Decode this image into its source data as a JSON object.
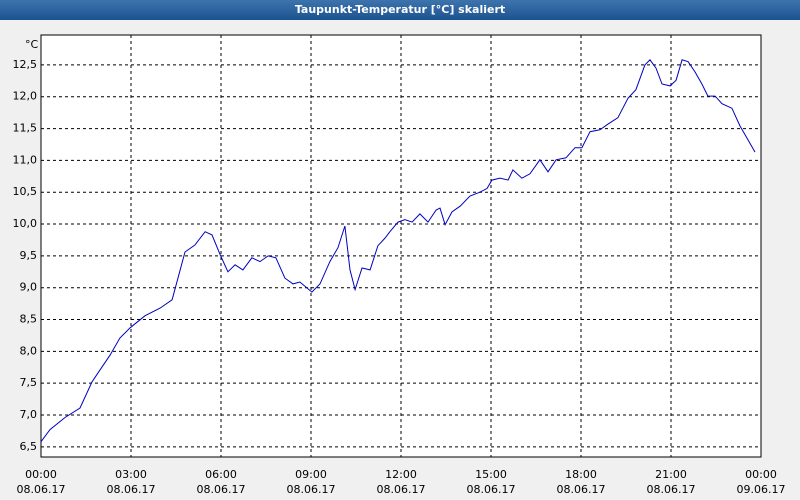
{
  "chart_data": {
    "type": "line",
    "title": "Taupunkt-Temperatur [°C] skaliert",
    "y_unit": "°C",
    "x": [
      0,
      0.3,
      0.8,
      1.3,
      1.7,
      1.97,
      2.3,
      2.63,
      2.97,
      3.47,
      3.97,
      4.37,
      4.8,
      5.13,
      5.47,
      5.7,
      5.97,
      6.23,
      6.47,
      6.73,
      7.03,
      7.3,
      7.57,
      7.83,
      8.13,
      8.4,
      8.63,
      9.03,
      9.3,
      9.63,
      9.9,
      10.13,
      10.3,
      10.47,
      10.7,
      10.97,
      11.23,
      11.47,
      11.63,
      11.9,
      12.13,
      12.37,
      12.63,
      12.9,
      13.17,
      13.3,
      13.47,
      13.7,
      13.97,
      14.3,
      14.63,
      14.87,
      15.03,
      15.3,
      15.57,
      15.73,
      16.03,
      16.3,
      16.63,
      16.9,
      17.17,
      17.5,
      17.8,
      18.03,
      18.3,
      18.63,
      18.9,
      19.23,
      19.57,
      19.83,
      20.13,
      20.3,
      20.5,
      20.7,
      20.97,
      21.17,
      21.37,
      21.57,
      21.8,
      22.03,
      22.23,
      22.47,
      22.7,
      23.03,
      23.3,
      23.57,
      23.8
    ],
    "series": [
      {
        "name": "Taupunkt",
        "color": "#0000c0",
        "values": [
          6.58,
          6.77,
          6.96,
          7.11,
          7.52,
          7.71,
          7.94,
          8.21,
          8.37,
          8.56,
          8.68,
          8.81,
          9.56,
          9.67,
          9.88,
          9.83,
          9.52,
          9.25,
          9.36,
          9.28,
          9.47,
          9.41,
          9.5,
          9.47,
          9.15,
          9.06,
          9.09,
          8.93,
          9.06,
          9.41,
          9.63,
          9.97,
          9.28,
          8.97,
          9.31,
          9.28,
          9.66,
          9.78,
          9.88,
          10.03,
          10.07,
          10.03,
          10.16,
          10.03,
          10.22,
          10.25,
          9.99,
          10.19,
          10.28,
          10.44,
          10.5,
          10.56,
          10.69,
          10.72,
          10.69,
          10.85,
          10.72,
          10.79,
          11.01,
          10.82,
          11.01,
          11.04,
          11.2,
          11.2,
          11.45,
          11.48,
          11.57,
          11.67,
          11.98,
          12.11,
          12.5,
          12.58,
          12.45,
          12.2,
          12.17,
          12.26,
          12.58,
          12.55,
          12.39,
          12.2,
          12.01,
          12.01,
          11.89,
          11.82,
          11.54,
          11.32,
          11.13
        ]
      }
    ],
    "xlim": [
      0,
      24
    ],
    "xticks": [
      {
        "value": 0,
        "label": "00:00"
      },
      {
        "value": 3,
        "label": "03:00"
      },
      {
        "value": 6,
        "label": "06:00"
      },
      {
        "value": 9,
        "label": "09:00"
      },
      {
        "value": 12,
        "label": "12:00"
      },
      {
        "value": 15,
        "label": "15:00"
      },
      {
        "value": 18,
        "label": "18:00"
      },
      {
        "value": 21,
        "label": "21:00"
      },
      {
        "value": 24,
        "label": "00:00"
      }
    ],
    "xtick_dates": [
      "08.06.17",
      "08.06.17",
      "08.06.17",
      "08.06.17",
      "08.06.17",
      "08.06.17",
      "08.06.17",
      "08.06.17",
      "09.06.17"
    ],
    "ylim": [
      6.34,
      12.97
    ],
    "yticks": [
      {
        "value": 6.5,
        "label": "6,5"
      },
      {
        "value": 7,
        "label": "7,0"
      },
      {
        "value": 7.5,
        "label": "7,5"
      },
      {
        "value": 8,
        "label": "8,0"
      },
      {
        "value": 8.5,
        "label": "8,5"
      },
      {
        "value": 9,
        "label": "9,0"
      },
      {
        "value": 9.5,
        "label": "9,5"
      },
      {
        "value": 10,
        "label": "10,0"
      },
      {
        "value": 10.5,
        "label": "10,5"
      },
      {
        "value": 11,
        "label": "11,0"
      },
      {
        "value": 11.5,
        "label": "11,5"
      },
      {
        "value": 12,
        "label": "12,0"
      },
      {
        "value": 12.5,
        "label": "12,5"
      }
    ],
    "grid": true
  }
}
